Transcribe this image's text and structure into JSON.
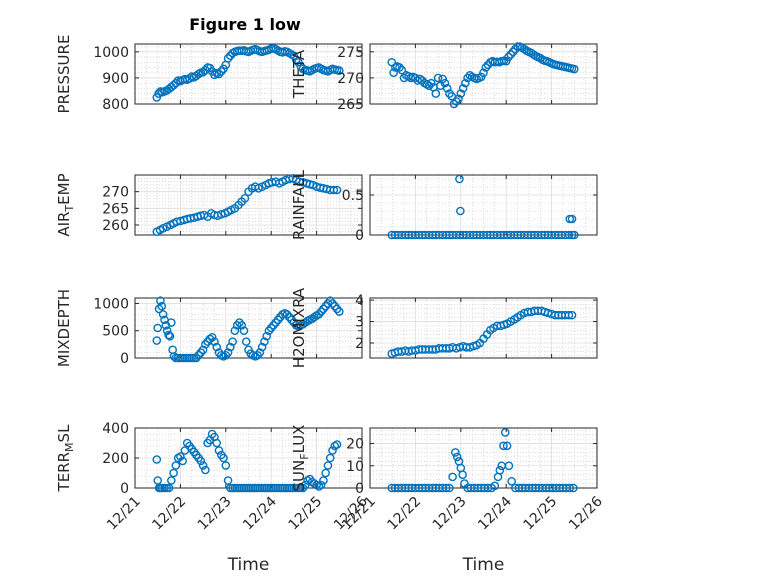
{
  "figure_title": "Figure 1 low",
  "marker_color": "#0072BD",
  "chart_data": [
    {
      "type": "scatter",
      "ylabel": "PRESSURE",
      "xlabel": "",
      "xlim": [
        0,
        5
      ],
      "ylim": [
        800,
        1030
      ],
      "yticks": [
        800,
        900,
        1000
      ],
      "xticks": [
        0,
        1,
        2,
        3,
        4,
        5
      ],
      "xticklabels": [
        "12/21",
        "12/22",
        "12/23",
        "12/24",
        "12/25",
        "12/26"
      ],
      "show_xticklabels": false,
      "grid": true,
      "minor_grid": true,
      "x": [
        0.48,
        0.52,
        0.56,
        0.6,
        0.65,
        0.7,
        0.75,
        0.8,
        0.85,
        0.9,
        0.95,
        1.0,
        1.05,
        1.1,
        1.15,
        1.2,
        1.25,
        1.3,
        1.35,
        1.4,
        1.45,
        1.5,
        1.55,
        1.6,
        1.65,
        1.7,
        1.75,
        1.8,
        1.85,
        1.9,
        1.95,
        2.0,
        2.05,
        2.1,
        2.15,
        2.2,
        2.25,
        2.3,
        2.35,
        2.4,
        2.45,
        2.5,
        2.55,
        2.6,
        2.65,
        2.7,
        2.75,
        2.8,
        2.85,
        2.9,
        2.95,
        3.0,
        3.05,
        3.1,
        3.15,
        3.2,
        3.25,
        3.3,
        3.35,
        3.4,
        3.45,
        3.5,
        3.55,
        3.6,
        3.65,
        3.7,
        3.75,
        3.8,
        3.85,
        3.9,
        3.95,
        4.0,
        4.05,
        4.1,
        4.15,
        4.2,
        4.25,
        4.3,
        4.35,
        4.4,
        4.45,
        4.5
      ],
      "y": [
        825,
        840,
        848,
        845,
        848,
        852,
        858,
        865,
        872,
        880,
        890,
        888,
        892,
        895,
        893,
        898,
        905,
        902,
        908,
        915,
        920,
        922,
        930,
        940,
        938,
        925,
        912,
        918,
        915,
        925,
        935,
        950,
        975,
        985,
        995,
        1000,
        1003,
        1005,
        1004,
        1006,
        1002,
        1000,
        1004,
        1008,
        1010,
        1006,
        1002,
        1000,
        1003,
        1005,
        1008,
        1012,
        1014,
        1010,
        1005,
        1000,
        998,
        1002,
        1000,
        995,
        990,
        985,
        970,
        960,
        945,
        935,
        930,
        928,
        925,
        930,
        935,
        938,
        940,
        935,
        930,
        928,
        925,
        930,
        935,
        932,
        930,
        928
      ]
    },
    {
      "type": "scatter",
      "ylabel": "THETA",
      "xlabel": "",
      "xlim": [
        0,
        5
      ],
      "ylim": [
        265,
        276.5
      ],
      "yticks": [
        265,
        270,
        275
      ],
      "xticks": [
        0,
        1,
        2,
        3,
        4,
        5
      ],
      "xticklabels": [
        "12/21",
        "12/22",
        "12/23",
        "12/24",
        "12/25",
        "12/26"
      ],
      "show_xticklabels": false,
      "grid": true,
      "minor_grid": true,
      "x": [
        0.48,
        0.52,
        0.56,
        0.6,
        0.65,
        0.7,
        0.75,
        0.8,
        0.85,
        0.9,
        0.95,
        1.0,
        1.05,
        1.1,
        1.15,
        1.2,
        1.25,
        1.3,
        1.35,
        1.4,
        1.45,
        1.5,
        1.55,
        1.6,
        1.65,
        1.7,
        1.75,
        1.8,
        1.85,
        1.9,
        1.95,
        2.0,
        2.05,
        2.1,
        2.15,
        2.2,
        2.25,
        2.3,
        2.35,
        2.4,
        2.45,
        2.5,
        2.55,
        2.6,
        2.65,
        2.7,
        2.75,
        2.8,
        2.85,
        2.9,
        2.95,
        3.0,
        3.05,
        3.1,
        3.15,
        3.2,
        3.25,
        3.3,
        3.35,
        3.4,
        3.45,
        3.5,
        3.55,
        3.6,
        3.65,
        3.7,
        3.75,
        3.8,
        3.85,
        3.9,
        3.95,
        4.0,
        4.05,
        4.1,
        4.15,
        4.2,
        4.25,
        4.3,
        4.35,
        4.4,
        4.45,
        4.5
      ],
      "y": [
        273,
        271,
        272,
        272.2,
        272,
        271.5,
        270,
        270.5,
        270.3,
        270,
        270.2,
        270,
        269.5,
        269.8,
        269.5,
        269,
        268.8,
        268.5,
        269,
        268.2,
        267,
        270,
        268.5,
        269.8,
        269,
        268,
        267,
        266.5,
        265,
        265.5,
        266,
        267,
        268,
        269,
        270,
        270.5,
        270.2,
        270,
        269.8,
        270,
        270.2,
        271,
        272,
        272.5,
        273,
        273.2,
        273,
        273.1,
        273,
        273.2,
        273.3,
        273.2,
        274,
        274.5,
        275,
        275.5,
        276,
        276,
        275.8,
        275.5,
        275.2,
        275,
        274.8,
        274.5,
        274.2,
        274,
        273.8,
        273.5,
        273.3,
        273.2,
        273,
        272.8,
        272.6,
        272.5,
        272.4,
        272.3,
        272.2,
        272.1,
        272,
        271.9,
        271.8,
        271.7
      ],
      "x_end": 4.6
    },
    {
      "type": "scatter",
      "ylabel": "AIR_TEMP",
      "xlabel": "",
      "xlim": [
        0,
        5
      ],
      "ylim": [
        257,
        275
      ],
      "yticks": [
        260,
        265,
        270
      ],
      "xticks": [
        0,
        1,
        2,
        3,
        4,
        5
      ],
      "xticklabels": [
        "12/21",
        "12/22",
        "12/23",
        "12/24",
        "12/25",
        "12/26"
      ],
      "show_xticklabels": false,
      "grid": true,
      "minor_grid": true,
      "x": [
        0.48,
        0.55,
        0.62,
        0.7,
        0.78,
        0.85,
        0.92,
        1.0,
        1.08,
        1.15,
        1.22,
        1.3,
        1.38,
        1.45,
        1.52,
        1.6,
        1.68,
        1.75,
        1.82,
        1.9,
        1.98,
        2.05,
        2.12,
        2.2,
        2.28,
        2.35,
        2.42,
        2.5,
        2.58,
        2.65,
        2.72,
        2.8,
        2.88,
        2.95,
        3.02,
        3.1,
        3.18,
        3.25,
        3.32,
        3.4,
        3.48,
        3.55,
        3.62,
        3.7,
        3.78,
        3.85,
        3.92,
        4.0,
        4.08,
        4.15,
        4.22,
        4.3,
        4.38,
        4.45
      ],
      "y": [
        258,
        258.5,
        259,
        259.5,
        260,
        260.5,
        261,
        261.2,
        261.5,
        261.8,
        262,
        262.2,
        262.5,
        262.8,
        263,
        262.5,
        263.5,
        263,
        262.8,
        263.2,
        263.5,
        264,
        264.5,
        265,
        266,
        267,
        268,
        270,
        271,
        271.5,
        271,
        271.5,
        272,
        272.5,
        272.8,
        273,
        272.5,
        273,
        273.5,
        273.8,
        274,
        273.5,
        273,
        272.8,
        272.5,
        272.2,
        272,
        271.5,
        271.2,
        271,
        270.8,
        270.5,
        270.5,
        270.5
      ]
    },
    {
      "type": "scatter",
      "ylabel": "RAINFALL",
      "xlabel": "",
      "xlim": [
        0,
        5
      ],
      "ylim": [
        0,
        0.75
      ],
      "yticks": [
        0,
        0.5
      ],
      "xticks": [
        0,
        1,
        2,
        3,
        4,
        5
      ],
      "xticklabels": [
        "12/21",
        "12/22",
        "12/23",
        "12/24",
        "12/25",
        "12/26"
      ],
      "show_xticklabels": false,
      "grid": true,
      "minor_grid": true,
      "x": [
        0.48,
        0.55,
        0.62,
        0.7,
        0.78,
        0.85,
        0.92,
        1.0,
        1.08,
        1.15,
        1.22,
        1.3,
        1.38,
        1.45,
        1.52,
        1.6,
        1.68,
        1.75,
        1.82,
        1.9,
        1.98,
        2.05,
        2.12,
        2.2,
        2.28,
        2.35,
        2.42,
        2.5,
        2.58,
        2.65,
        2.72,
        2.8,
        2.88,
        2.95,
        3.02,
        3.1,
        3.18,
        3.25,
        3.32,
        3.4,
        3.48,
        3.55,
        3.62,
        3.7,
        3.78,
        3.85,
        3.92,
        4.0,
        4.08,
        4.15,
        4.22,
        4.3,
        4.38,
        4.45,
        4.5,
        1.97,
        1.99,
        4.4,
        4.45
      ],
      "y": [
        0,
        0,
        0,
        0,
        0,
        0,
        0,
        0,
        0,
        0,
        0,
        0,
        0,
        0,
        0,
        0,
        0,
        0,
        0,
        0,
        0,
        0,
        0,
        0,
        0,
        0,
        0,
        0,
        0,
        0,
        0,
        0,
        0,
        0,
        0,
        0,
        0,
        0,
        0,
        0,
        0,
        0,
        0,
        0,
        0,
        0,
        0,
        0,
        0,
        0,
        0,
        0,
        0,
        0,
        0,
        0.7,
        0.3,
        0.2,
        0.2
      ]
    },
    {
      "type": "scatter",
      "ylabel": "MIXDEPTH",
      "xlabel": "",
      "xlim": [
        0,
        5
      ],
      "ylim": [
        0,
        1100
      ],
      "yticks": [
        0,
        500,
        1000
      ],
      "xticks": [
        0,
        1,
        2,
        3,
        4,
        5
      ],
      "xticklabels": [
        "12/21",
        "12/22",
        "12/23",
        "12/24",
        "12/25",
        "12/26"
      ],
      "show_xticklabels": false,
      "grid": true,
      "minor_grid": true,
      "x": [
        0.48,
        0.5,
        0.53,
        0.56,
        0.59,
        0.62,
        0.65,
        0.68,
        0.71,
        0.74,
        0.77,
        0.8,
        0.83,
        0.86,
        0.9,
        0.95,
        1.0,
        1.05,
        1.1,
        1.15,
        1.2,
        1.25,
        1.3,
        1.35,
        1.4,
        1.45,
        1.5,
        1.55,
        1.6,
        1.65,
        1.7,
        1.75,
        1.8,
        1.85,
        1.9,
        1.95,
        2.0,
        2.05,
        2.1,
        2.15,
        2.2,
        2.25,
        2.3,
        2.35,
        2.4,
        2.45,
        2.5,
        2.55,
        2.6,
        2.65,
        2.7,
        2.75,
        2.8,
        2.85,
        2.9,
        2.95,
        3.0,
        3.05,
        3.1,
        3.15,
        3.2,
        3.25,
        3.3,
        3.35,
        3.4,
        3.45,
        3.5,
        3.55,
        3.6,
        3.65,
        3.7,
        3.75,
        3.8,
        3.85,
        3.9,
        3.95,
        4.0,
        4.05,
        4.1,
        4.15,
        4.2,
        4.25,
        4.3,
        4.35,
        4.4,
        4.45,
        4.5
      ],
      "y": [
        320,
        550,
        900,
        1050,
        950,
        800,
        700,
        600,
        500,
        420,
        400,
        650,
        150,
        30,
        0,
        0,
        0,
        0,
        0,
        0,
        0,
        0,
        0,
        0,
        50,
        100,
        150,
        250,
        300,
        350,
        380,
        300,
        200,
        100,
        50,
        30,
        50,
        100,
        200,
        300,
        500,
        600,
        650,
        600,
        500,
        300,
        150,
        80,
        50,
        30,
        50,
        100,
        200,
        300,
        400,
        500,
        550,
        600,
        650,
        700,
        750,
        800,
        820,
        800,
        750,
        700,
        650,
        600,
        580,
        600,
        620,
        650,
        680,
        700,
        720,
        750,
        780,
        800,
        850,
        900,
        950,
        1000,
        1050,
        1000,
        950,
        900,
        850
      ]
    },
    {
      "type": "scatter",
      "ylabel": "H2OMIXRA",
      "xlabel": "",
      "xlim": [
        0,
        5
      ],
      "ylim": [
        1.3,
        4.1
      ],
      "yticks": [
        2,
        3,
        4
      ],
      "xticks": [
        0,
        1,
        2,
        3,
        4,
        5
      ],
      "xticklabels": [
        "12/21",
        "12/22",
        "12/23",
        "12/24",
        "12/25",
        "12/26"
      ],
      "show_xticklabels": false,
      "grid": true,
      "minor_grid": true,
      "x": [
        0.48,
        0.55,
        0.62,
        0.7,
        0.78,
        0.85,
        0.92,
        1.0,
        1.08,
        1.15,
        1.22,
        1.3,
        1.38,
        1.45,
        1.52,
        1.6,
        1.68,
        1.75,
        1.82,
        1.9,
        1.98,
        2.05,
        2.12,
        2.2,
        2.28,
        2.35,
        2.42,
        2.5,
        2.58,
        2.65,
        2.72,
        2.8,
        2.88,
        2.95,
        3.02,
        3.1,
        3.18,
        3.25,
        3.32,
        3.4,
        3.48,
        3.55,
        3.62,
        3.7,
        3.78,
        3.85,
        3.92,
        4.0,
        4.08,
        4.15,
        4.22,
        4.3,
        4.38,
        4.45
      ],
      "y": [
        1.5,
        1.55,
        1.6,
        1.6,
        1.65,
        1.6,
        1.65,
        1.65,
        1.7,
        1.7,
        1.7,
        1.7,
        1.7,
        1.7,
        1.75,
        1.75,
        1.75,
        1.75,
        1.8,
        1.75,
        1.8,
        1.85,
        1.8,
        1.8,
        1.85,
        1.9,
        2.0,
        2.2,
        2.4,
        2.6,
        2.7,
        2.8,
        2.8,
        2.85,
        2.9,
        3.0,
        3.1,
        3.2,
        3.3,
        3.4,
        3.45,
        3.45,
        3.5,
        3.5,
        3.5,
        3.45,
        3.4,
        3.35,
        3.3,
        3.3,
        3.3,
        3.3,
        3.3,
        3.3
      ]
    },
    {
      "type": "scatter",
      "ylabel": "TERR_MSL",
      "xlabel": "Time",
      "xlim": [
        0,
        5
      ],
      "ylim": [
        0,
        400
      ],
      "yticks": [
        0,
        200,
        400
      ],
      "xticks": [
        0,
        1,
        2,
        3,
        4,
        5
      ],
      "xticklabels": [
        "12/21",
        "12/22",
        "12/23",
        "12/24",
        "12/25",
        "12/26"
      ],
      "show_xticklabels": true,
      "grid": true,
      "minor_grid": true,
      "x": [
        0.48,
        0.5,
        0.53,
        0.56,
        0.6,
        0.65,
        0.7,
        0.75,
        0.8,
        0.85,
        0.9,
        0.95,
        1.0,
        1.05,
        1.1,
        1.15,
        1.2,
        1.25,
        1.3,
        1.35,
        1.4,
        1.45,
        1.5,
        1.55,
        1.6,
        1.65,
        1.7,
        1.75,
        1.8,
        1.85,
        1.9,
        1.95,
        2.0,
        2.05,
        2.1,
        2.15,
        2.2,
        2.25,
        2.3,
        2.35,
        2.4,
        2.45,
        2.5,
        2.55,
        2.6,
        2.65,
        2.7,
        2.75,
        2.8,
        2.85,
        2.9,
        2.95,
        3.0,
        3.05,
        3.1,
        3.15,
        3.2,
        3.25,
        3.3,
        3.35,
        3.4,
        3.45,
        3.5,
        3.55,
        3.6,
        3.65,
        3.7,
        3.75,
        3.8,
        3.85,
        3.9,
        3.95,
        4.0,
        4.05,
        4.1,
        4.15,
        4.2,
        4.25,
        4.3,
        4.35,
        4.4,
        4.45
      ],
      "y": [
        190,
        50,
        0,
        0,
        0,
        0,
        0,
        0,
        50,
        100,
        150,
        200,
        210,
        180,
        250,
        300,
        280,
        260,
        240,
        220,
        200,
        180,
        150,
        120,
        300,
        320,
        360,
        340,
        300,
        250,
        220,
        200,
        150,
        50,
        0,
        0,
        0,
        0,
        0,
        0,
        0,
        0,
        0,
        0,
        0,
        0,
        0,
        0,
        0,
        0,
        0,
        0,
        0,
        0,
        0,
        0,
        0,
        0,
        0,
        0,
        0,
        0,
        0,
        0,
        0,
        0,
        0,
        20,
        50,
        60,
        40,
        30,
        20,
        10,
        20,
        50,
        100,
        150,
        200,
        250,
        280,
        290
      ]
    },
    {
      "type": "scatter",
      "ylabel": "SUN_FLUX",
      "xlabel": "Time",
      "xlim": [
        0,
        5
      ],
      "ylim": [
        0,
        27
      ],
      "yticks": [
        0,
        10,
        20
      ],
      "xticks": [
        0,
        1,
        2,
        3,
        4,
        5
      ],
      "xticklabels": [
        "12/21",
        "12/22",
        "12/23",
        "12/24",
        "12/25",
        "12/26"
      ],
      "show_xticklabels": true,
      "grid": true,
      "minor_grid": true,
      "x": [
        0.48,
        0.55,
        0.62,
        0.7,
        0.78,
        0.85,
        0.92,
        1.0,
        1.08,
        1.15,
        1.22,
        1.3,
        1.38,
        1.45,
        1.52,
        1.6,
        1.68,
        1.75,
        1.82,
        1.88,
        1.92,
        1.96,
        2.0,
        2.04,
        2.08,
        2.15,
        2.22,
        2.3,
        2.38,
        2.45,
        2.52,
        2.6,
        2.68,
        2.75,
        2.82,
        2.86,
        2.9,
        2.94,
        2.98,
        3.02,
        3.06,
        3.12,
        3.2,
        3.28,
        3.35,
        3.42,
        3.5,
        3.58,
        3.65,
        3.72,
        3.8,
        3.88,
        3.95,
        4.02,
        4.1,
        4.18,
        4.25,
        4.32,
        4.4,
        4.48
      ],
      "y": [
        0,
        0,
        0,
        0,
        0,
        0,
        0,
        0,
        0,
        0,
        0,
        0,
        0,
        0,
        0,
        0,
        0,
        0,
        5,
        16,
        14,
        12,
        9,
        6,
        2,
        0,
        0,
        0,
        0,
        0,
        0,
        0,
        0,
        1,
        5,
        8,
        10,
        19,
        25,
        19,
        10,
        3,
        0,
        0,
        0,
        0,
        0,
        0,
        0,
        0,
        0,
        0,
        0,
        0,
        0,
        0,
        0,
        0,
        0,
        0
      ]
    }
  ]
}
